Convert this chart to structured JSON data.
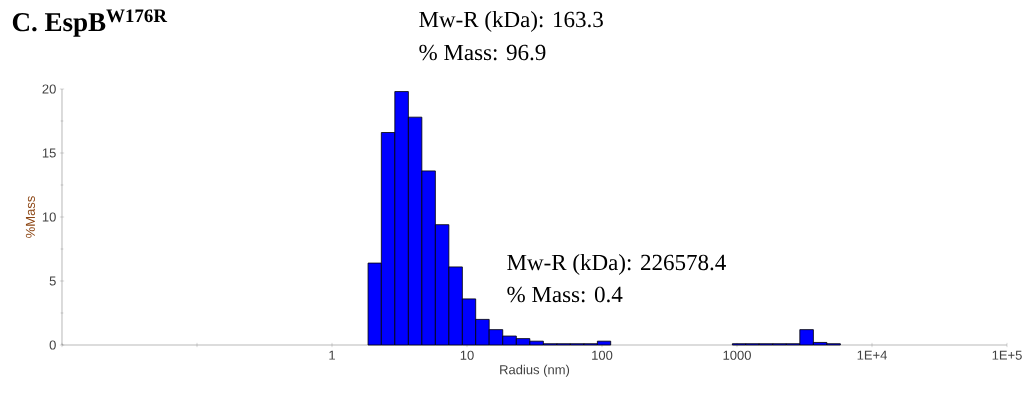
{
  "chart_data": {
    "type": "histogram",
    "title": "C. EspB$^{W176R}$",
    "xlabel": "Radius (nm)",
    "ylabel": "%Mass",
    "bins": [
      1.85,
      2.32,
      2.92,
      3.68,
      4.63,
      5.83,
      7.34,
      9.24,
      11.6,
      14.6,
      18.4,
      23.2,
      29.2,
      36.8,
      46.3,
      58.3,
      73.4,
      92.4,
      116,
      146,
      184,
      232,
      292,
      368,
      463,
      583,
      734,
      924,
      1160,
      1460,
      1840,
      2320,
      2920,
      3680,
      4630,
      5830
    ],
    "values": [
      6.4,
      16.6,
      19.8,
      17.8,
      13.6,
      9.4,
      6.1,
      3.6,
      2.0,
      1.2,
      0.7,
      0.5,
      0.3,
      0.1,
      0.1,
      0.1,
      0.1,
      0.3,
      null,
      null,
      null,
      null,
      null,
      null,
      null,
      null,
      null,
      0.1,
      0.1,
      0.1,
      0.1,
      0.1,
      1.2,
      0.2,
      0.1
    ],
    "color": "#0000ff",
    "log": "x",
    "xlim": [
      0.01,
      100000
    ],
    "xticks": [
      {
        "value": 0.01,
        "label": null
      },
      {
        "value": 0.1,
        "label": null
      },
      1,
      10,
      100,
      1000,
      {
        "value": 10000,
        "label": "1E+4"
      },
      {
        "value": 100000,
        "label": "1E+5"
      }
    ],
    "ylim": [
      0,
      20
    ],
    "yticks": [
      0,
      5,
      10,
      15,
      20
    ],
    "annotations": [
      "Mw-R (kDa): 163.3",
      "% Mass: 96.9",
      "Mw-R (kDa): 226578.4",
      "% Mass: 0.4"
    ]
  }
}
